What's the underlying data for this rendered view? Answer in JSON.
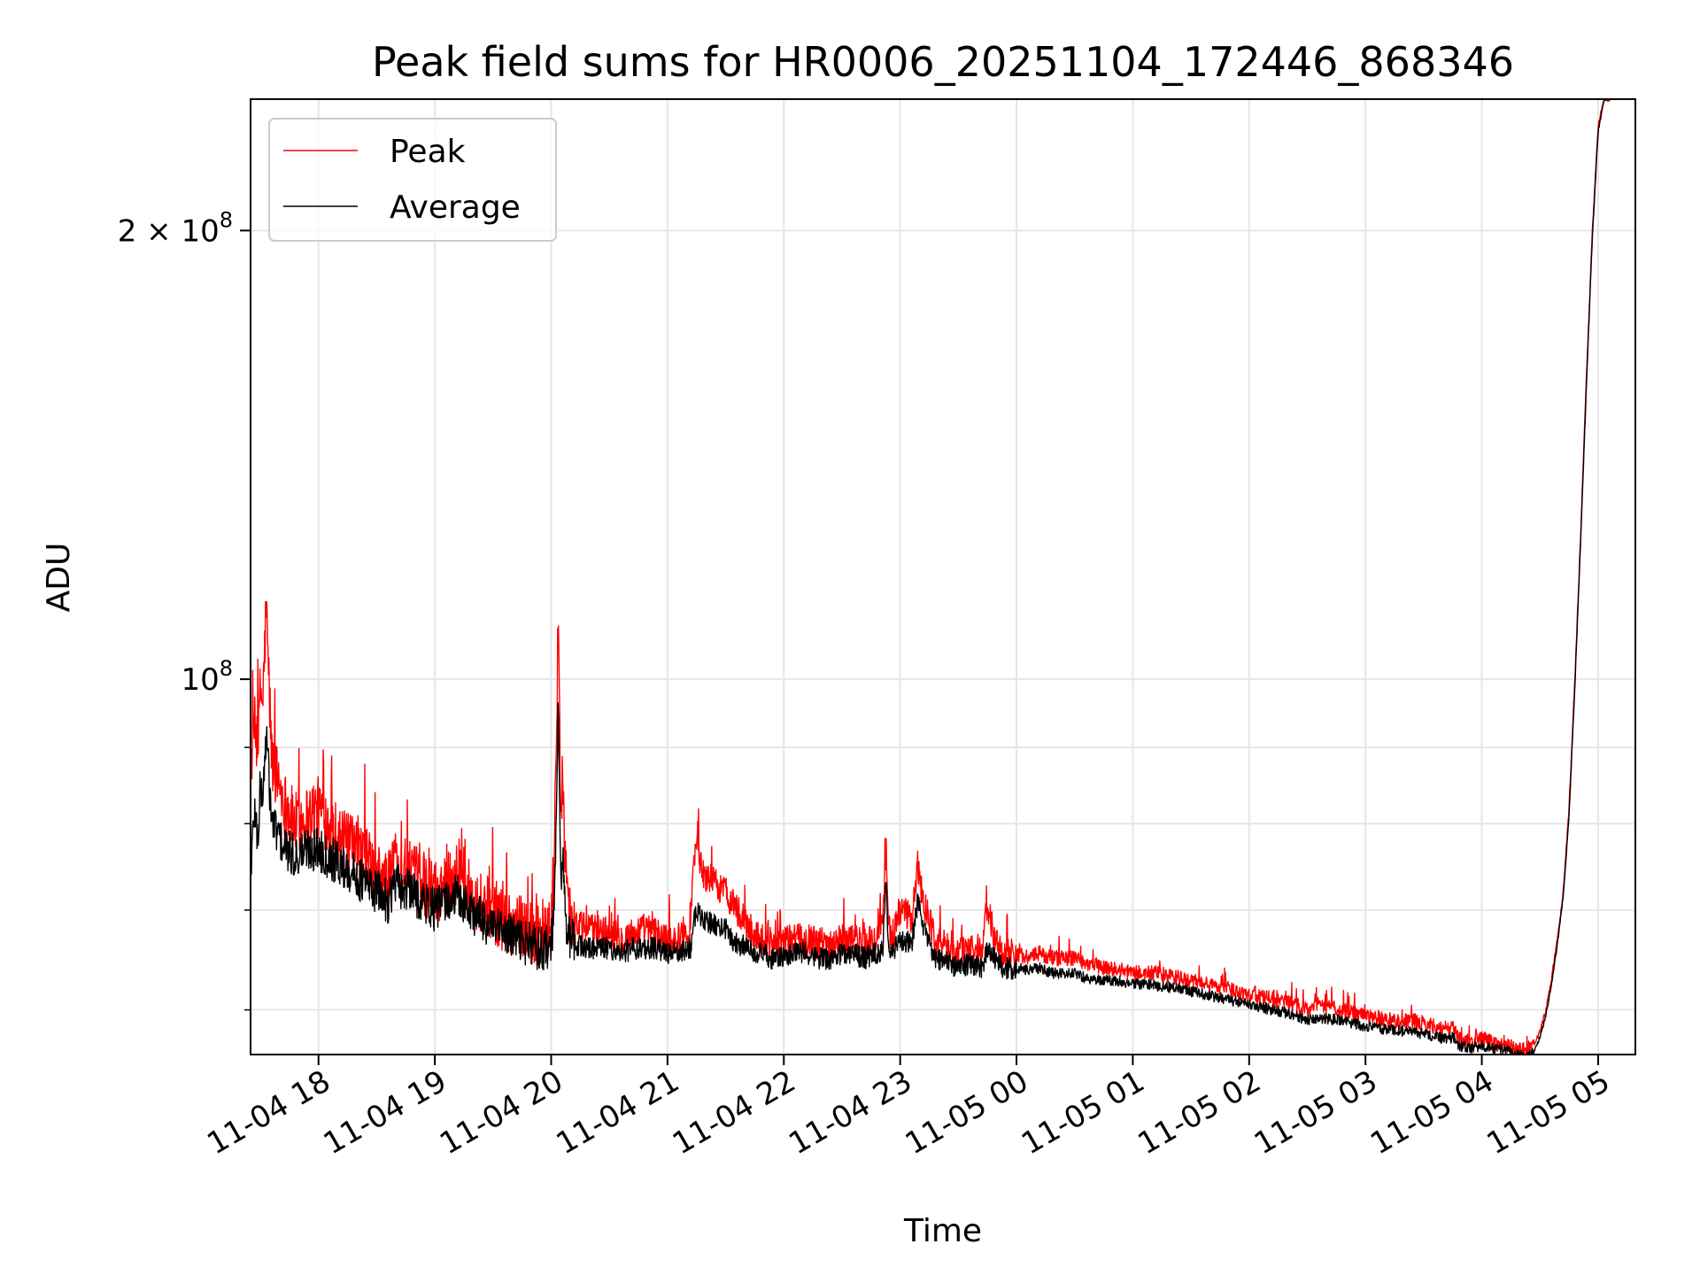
{
  "chart_data": {
    "type": "line",
    "title": "Peak field sums for HR0006_20251104_172446_868346",
    "xlabel": "Time",
    "ylabel": "ADU",
    "yscale": "log",
    "grid": true,
    "legend_position": "top-left",
    "xlim_hours": [
      17.416,
      29.32
    ],
    "ylim": [
      56000000,
      245000000
    ],
    "x_ticks": [
      {
        "hour": 18,
        "label": "11-04 18"
      },
      {
        "hour": 19,
        "label": "11-04 19"
      },
      {
        "hour": 20,
        "label": "11-04 20"
      },
      {
        "hour": 21,
        "label": "11-04 21"
      },
      {
        "hour": 22,
        "label": "11-04 22"
      },
      {
        "hour": 23,
        "label": "11-04 23"
      },
      {
        "hour": 24,
        "label": "11-05 00"
      },
      {
        "hour": 25,
        "label": "11-05 01"
      },
      {
        "hour": 26,
        "label": "11-05 02"
      },
      {
        "hour": 27,
        "label": "11-05 03"
      },
      {
        "hour": 28,
        "label": "11-05 04"
      },
      {
        "hour": 29,
        "label": "11-05 05"
      }
    ],
    "y_major_ticks": [
      {
        "value": 100000000,
        "base": "10",
        "exp": "8"
      },
      {
        "value": 200000000,
        "base": "2 × 10",
        "exp": "8"
      }
    ],
    "y_minor_ticks": [
      60000000,
      70000000,
      80000000,
      90000000
    ],
    "series": [
      {
        "name": "Peak",
        "color": "#ff0000",
        "x_hours": [
          17.42,
          17.45,
          17.48,
          17.5,
          17.52,
          17.55,
          17.6,
          17.65,
          17.7,
          17.8,
          17.9,
          18.0,
          18.1,
          18.2,
          18.3,
          18.4,
          18.5,
          18.6,
          18.65,
          18.7,
          18.8,
          18.9,
          19.0,
          19.1,
          19.2,
          19.3,
          19.4,
          19.5,
          19.6,
          19.7,
          19.8,
          19.9,
          19.95,
          20.0,
          20.02,
          20.04,
          20.06,
          20.08,
          20.1,
          20.12,
          20.15,
          20.2,
          20.3,
          20.4,
          20.5,
          20.6,
          20.7,
          20.8,
          20.9,
          21.0,
          21.1,
          21.2,
          21.22,
          21.25,
          21.3,
          21.4,
          21.5,
          21.55,
          21.6,
          21.7,
          21.8,
          21.9,
          22.0,
          22.1,
          22.2,
          22.3,
          22.4,
          22.5,
          22.6,
          22.7,
          22.8,
          22.85,
          22.88,
          22.9,
          22.93,
          23.0,
          23.1,
          23.15,
          23.2,
          23.25,
          23.3,
          23.4,
          23.5,
          23.6,
          23.7,
          23.75,
          23.8,
          23.85,
          23.9,
          24.0,
          24.1,
          24.2,
          24.3,
          24.4,
          24.5,
          24.6,
          24.8,
          25.0,
          25.2,
          25.4,
          25.6,
          25.8,
          26.0,
          26.2,
          26.4,
          26.5,
          26.6,
          26.8,
          27.0,
          27.2,
          27.4,
          27.6,
          27.7,
          27.75,
          27.8,
          27.9,
          28.0,
          28.1,
          28.2,
          28.3,
          28.4,
          28.45,
          28.5,
          28.55,
          28.6,
          28.65,
          28.7,
          28.75,
          28.8,
          28.85,
          28.9,
          28.95,
          29.0,
          29.05,
          29.1
        ],
        "values": [
          88000000.0,
          93000000.0,
          90000000.0,
          99000000.0,
          96000000.0,
          112000000.0,
          88000000.0,
          86000000.0,
          83000000.0,
          80000000.0,
          81000000.0,
          82000000.0,
          80000000.0,
          78000000.0,
          77000000.0,
          76000000.0,
          74000000.0,
          73000000.0,
          76000000.0,
          75000000.0,
          74000000.0,
          73000000.0,
          72000000.0,
          73000000.0,
          74000000.0,
          72000000.0,
          71000000.0,
          70000000.0,
          69000000.0,
          68500000.0,
          68000000.0,
          67000000.0,
          67500000.0,
          68000000.0,
          72000000.0,
          88000000.0,
          108000000.0,
          82000000.0,
          86000000.0,
          77000000.0,
          70000000.0,
          68500000.0,
          68000000.0,
          68000000.0,
          67500000.0,
          67000000.0,
          67500000.0,
          68000000.0,
          67500000.0,
          67000000.0,
          67000000.0,
          68000000.0,
          75000000.0,
          78000000.0,
          74000000.0,
          73000000.0,
          72000000.0,
          71000000.0,
          70000000.0,
          68000000.0,
          67000000.0,
          66500000.0,
          66500000.0,
          67000000.0,
          67000000.0,
          66500000.0,
          66500000.0,
          67000000.0,
          67000000.0,
          66500000.0,
          67000000.0,
          70000000.0,
          76000000.0,
          68000000.0,
          67000000.0,
          70000000.0,
          69000000.0,
          75000000.0,
          71000000.0,
          69000000.0,
          67000000.0,
          66000000.0,
          65500000.0,
          66000000.0,
          65500000.0,
          71000000.0,
          67000000.0,
          66000000.0,
          65500000.0,
          65500000.0,
          65000000.0,
          65500000.0,
          65000000.0,
          65000000.0,
          65000000.0,
          64500000.0,
          64000000.0,
          63500000.0,
          63500000.0,
          63000000.0,
          62500000.0,
          62000000.0,
          61500000.0,
          61000000.0,
          60500000.0,
          60000000.0,
          60500000.0,
          60000000.0,
          59500000.0,
          59000000.0,
          59000000.0,
          58500000.0,
          58000000.0,
          58500000.0,
          57500000.0,
          57000000.0,
          57500000.0,
          57000000.0,
          56800000.0,
          56500000.0,
          56200000.0,
          56800000.0,
          58000000.0,
          60000000.0,
          63000000.0,
          67000000.0,
          72000000.0,
          82000000.0,
          100000000.0,
          125000000.0,
          160000000.0,
          200000000.0,
          235000000.0,
          245000000.0,
          245000000.0
        ]
      },
      {
        "name": "Average",
        "color": "#000000",
        "x_hours": [
          17.42,
          17.45,
          17.48,
          17.5,
          17.52,
          17.55,
          17.6,
          17.65,
          17.7,
          17.8,
          17.9,
          18.0,
          18.1,
          18.2,
          18.3,
          18.4,
          18.5,
          18.6,
          18.65,
          18.7,
          18.8,
          18.9,
          19.0,
          19.1,
          19.2,
          19.3,
          19.4,
          19.5,
          19.6,
          19.7,
          19.8,
          19.9,
          19.95,
          20.0,
          20.02,
          20.04,
          20.06,
          20.08,
          20.1,
          20.12,
          20.15,
          20.2,
          20.3,
          20.4,
          20.5,
          20.6,
          20.7,
          20.8,
          20.9,
          21.0,
          21.1,
          21.2,
          21.22,
          21.25,
          21.3,
          21.4,
          21.5,
          21.55,
          21.6,
          21.7,
          21.8,
          21.9,
          22.0,
          22.1,
          22.2,
          22.3,
          22.4,
          22.5,
          22.6,
          22.7,
          22.8,
          22.85,
          22.88,
          22.9,
          22.93,
          23.0,
          23.1,
          23.15,
          23.2,
          23.25,
          23.3,
          23.4,
          23.5,
          23.6,
          23.7,
          23.75,
          23.8,
          23.85,
          23.9,
          24.0,
          24.1,
          24.2,
          24.3,
          24.4,
          24.5,
          24.6,
          24.8,
          25.0,
          25.2,
          25.4,
          25.6,
          25.8,
          26.0,
          26.2,
          26.4,
          26.5,
          26.6,
          26.8,
          27.0,
          27.2,
          27.4,
          27.6,
          27.7,
          27.75,
          27.8,
          27.9,
          28.0,
          28.1,
          28.2,
          28.3,
          28.4,
          28.45,
          28.5,
          28.55,
          28.6,
          28.65,
          28.7,
          28.75,
          28.8,
          28.85,
          28.9,
          28.95,
          29.0,
          29.05,
          29.1
        ],
        "values": [
          75000000.0,
          82000000.0,
          78000000.0,
          85000000.0,
          83000000.0,
          92000000.0,
          80000000.0,
          79000000.0,
          77000000.0,
          76000000.0,
          77000000.0,
          77000000.0,
          76000000.0,
          75000000.0,
          74000000.0,
          73000000.0,
          72000000.0,
          71000000.0,
          73000000.0,
          72500000.0,
          72000000.0,
          71000000.0,
          70000000.0,
          71000000.0,
          71500000.0,
          70000000.0,
          69000000.0,
          68000000.0,
          67500000.0,
          67000000.0,
          66500000.0,
          66000000.0,
          66000000.0,
          66500000.0,
          68000000.0,
          78000000.0,
          96000000.0,
          74000000.0,
          76000000.0,
          70000000.0,
          67000000.0,
          66500000.0,
          66000000.0,
          66000000.0,
          66000000.0,
          65500000.0,
          66000000.0,
          66000000.0,
          66000000.0,
          65500000.0,
          65500000.0,
          66000000.0,
          68000000.0,
          70000000.0,
          69000000.0,
          68500000.0,
          68000000.0,
          67000000.0,
          66500000.0,
          66000000.0,
          65500000.0,
          65000000.0,
          65000000.0,
          65500000.0,
          65500000.0,
          65000000.0,
          65000000.0,
          65500000.0,
          65500000.0,
          65000000.0,
          65500000.0,
          66000000.0,
          73000000.0,
          66000000.0,
          65500000.0,
          67000000.0,
          66500000.0,
          71000000.0,
          68000000.0,
          66500000.0,
          65000000.0,
          64500000.0,
          64000000.0,
          64500000.0,
          64000000.0,
          66000000.0,
          65000000.0,
          64500000.0,
          64000000.0,
          64000000.0,
          63800000.0,
          64000000.0,
          63500000.0,
          63500000.0,
          63500000.0,
          63000000.0,
          62800000.0,
          62500000.0,
          62300000.0,
          62000000.0,
          61500000.0,
          61000000.0,
          60500000.0,
          60000000.0,
          59500000.0,
          59000000.0,
          59300000.0,
          59000000.0,
          58500000.0,
          58200000.0,
          58000000.0,
          57600000.0,
          57300000.0,
          57500000.0,
          56800000.0,
          56500000.0,
          56800000.0,
          56500000.0,
          56300000.0,
          56000000.0,
          55800000.0,
          56300000.0,
          57500000.0,
          59500000.0,
          62500000.0,
          66500000.0,
          71500000.0,
          81000000.0,
          99000000.0,
          124000000.0,
          158000000.0,
          198000000.0,
          233000000.0,
          245000000.0,
          245000000.0
        ]
      }
    ]
  }
}
